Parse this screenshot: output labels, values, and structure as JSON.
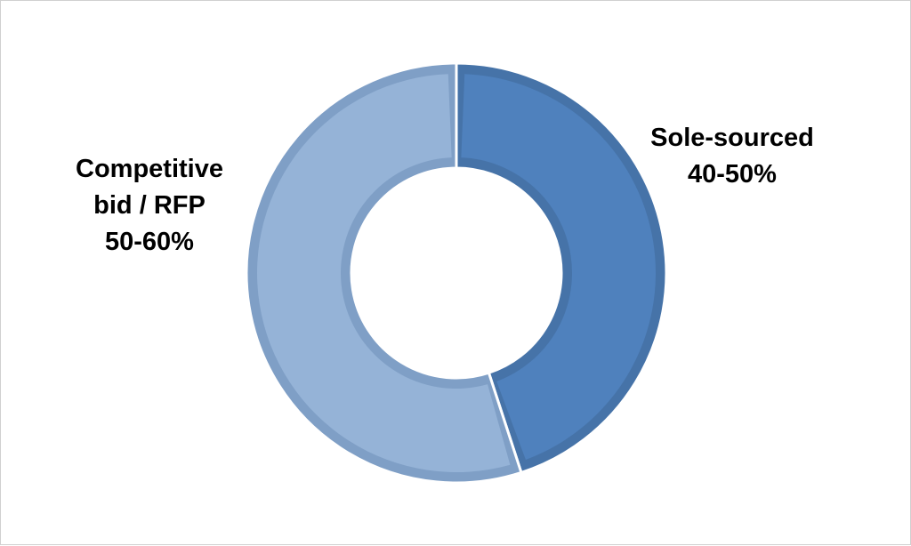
{
  "chart_data": {
    "type": "pie",
    "variant": "donut",
    "title": "",
    "slices": [
      {
        "label_lines": [
          "Sole-sourced",
          "40-50%"
        ],
        "value": 45,
        "color": "#4F81BD",
        "border_color": "#4673A8"
      },
      {
        "label_lines": [
          "Competitive",
          "bid / RFP",
          "50-60%"
        ],
        "value": 55,
        "color": "#95B3D7",
        "border_color": "#7F9FC6"
      }
    ],
    "legend": "none"
  }
}
